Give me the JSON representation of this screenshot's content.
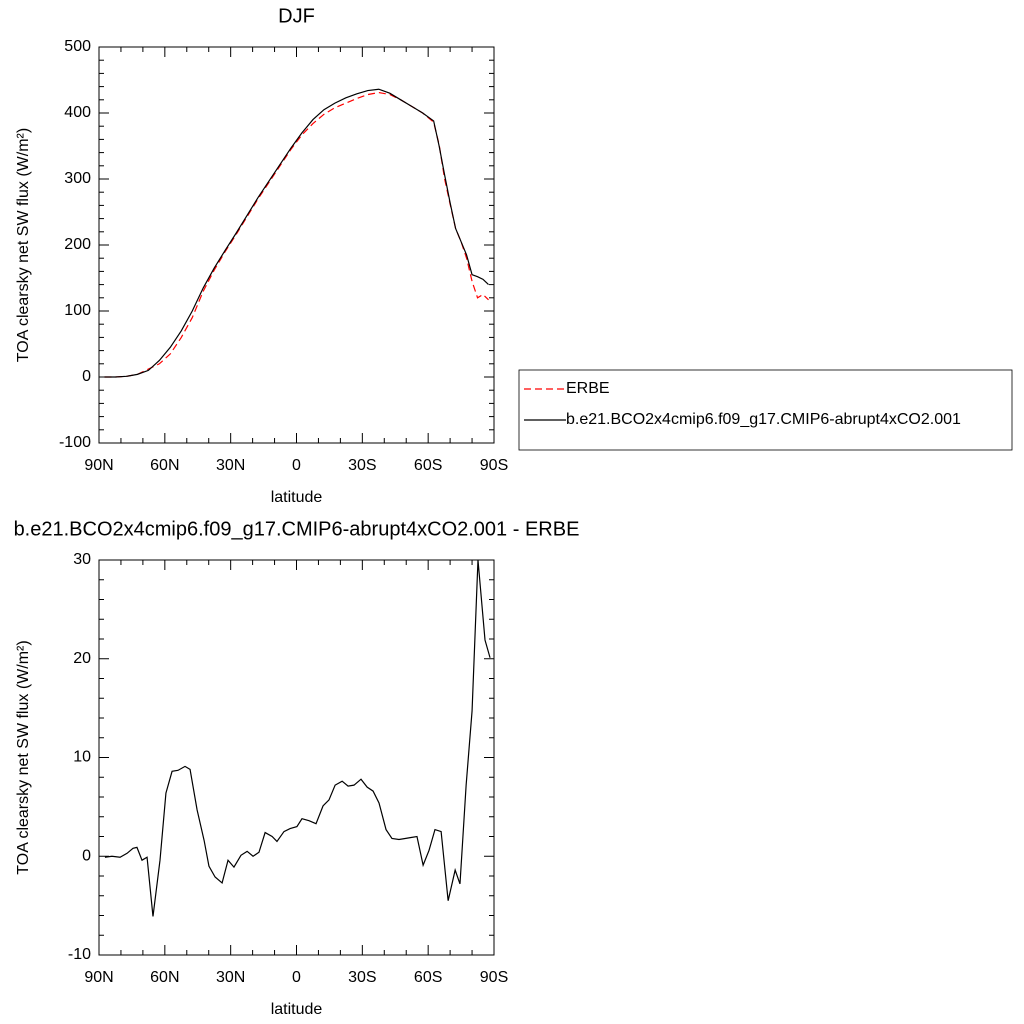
{
  "chart_data": [
    {
      "type": "line",
      "title": "DJF",
      "xlabel": "latitude",
      "ylabel": "TOA clearsky net SW flux (W/m²)",
      "x": [
        87.5,
        82.5,
        77.5,
        72.5,
        67.5,
        62.5,
        57.5,
        52.5,
        47.5,
        42.5,
        37.5,
        32.5,
        27.5,
        22.5,
        17.5,
        12.5,
        7.5,
        2.5,
        -2.5,
        -7.5,
        -12.5,
        -17.5,
        -22.5,
        -27.5,
        -32.5,
        -37.5,
        -42.5,
        -47.5,
        -52.5,
        -57.5,
        -62.5,
        -65,
        -67.5,
        -70,
        -72.5,
        -75,
        -77.5,
        -80,
        -82.5,
        -85,
        -87.5
      ],
      "series": [
        {
          "name": "ERBE",
          "color": "#ff0000",
          "line_style": "dashed",
          "values": [
            0,
            0,
            1,
            4,
            12,
            20,
            35,
            60,
            90,
            130,
            162,
            190,
            216,
            243,
            270,
            295,
            320,
            345,
            367,
            384,
            398,
            408,
            415,
            422,
            428,
            431,
            428,
            420,
            410,
            400,
            386,
            352,
            300,
            262,
            225,
            205,
            180,
            145,
            120,
            125,
            117
          ]
        },
        {
          "name": "b.e21.BCO2x4cmip6.f09_g17.CMIP6-abrupt4xCO2.001",
          "color": "#000000",
          "line_style": "solid",
          "values": [
            0,
            0,
            1,
            4,
            10,
            25,
            45,
            70,
            100,
            135,
            165,
            192,
            218,
            245,
            272,
            297,
            322,
            347,
            370,
            390,
            405,
            415,
            423,
            429,
            434,
            436,
            430,
            420,
            410,
            400,
            388,
            350,
            306,
            264,
            225,
            205,
            185,
            155,
            152,
            148,
            140
          ]
        }
      ],
      "xlim": [
        90,
        -90
      ],
      "xticks": [
        {
          "value": 90,
          "label": "90N"
        },
        {
          "value": 60,
          "label": "60N"
        },
        {
          "value": 30,
          "label": "30N"
        },
        0,
        {
          "value": -30,
          "label": "30S"
        },
        {
          "value": -60,
          "label": "60S"
        },
        {
          "value": -90,
          "label": "90S"
        }
      ],
      "ylim": [
        -100,
        500
      ],
      "yticks": [
        -100,
        0,
        100,
        200,
        300,
        400,
        500
      ],
      "legend": "right"
    },
    {
      "type": "line",
      "title": "b.e21.BCO2x4cmip6.f09_g17.CMIP6-abrupt4xCO2.001 - ERBE",
      "xlabel": "latitude",
      "ylabel": "TOA clearsky net SW flux (W/m²)",
      "x": [
        87.3,
        84.1,
        80.4,
        77.2,
        74.5,
        72.7,
        70.4,
        68.1,
        65.4,
        62.2,
        59.5,
        56.7,
        54.0,
        50.8,
        48.5,
        45.3,
        42.1,
        39.9,
        37.1,
        33.9,
        31.2,
        28.5,
        25.3,
        22.5,
        19.8,
        17.1,
        14.3,
        11.1,
        8.9,
        5.7,
        2.9,
        -0.2,
        -2.5,
        -5.7,
        -8.9,
        -12.1,
        -14.8,
        -17.6,
        -20.8,
        -23.5,
        -26.2,
        -29.4,
        -32.2,
        -34.9,
        -37.6,
        -40.8,
        -43.5,
        -46.7,
        -49.5,
        -52.2,
        -54.9,
        -57.7,
        -60.4,
        -63.1,
        -65.9,
        -69.1,
        -72.3,
        -74.5,
        -77.3,
        -80.0,
        -82.7,
        -85.9,
        -88.2
      ],
      "values": [
        -0.1,
        0,
        -0.1,
        0.3,
        0.8,
        0.9,
        -0.4,
        -0.1,
        -6.1,
        -0.4,
        6.4,
        8.6,
        8.7,
        9.1,
        8.8,
        4.7,
        1.6,
        -1.0,
        -2.1,
        -2.7,
        -0.4,
        -1.1,
        0.1,
        0.5,
        0,
        0.4,
        2.4,
        2.0,
        1.5,
        2.5,
        2.8,
        3.0,
        3.8,
        3.6,
        3.3,
        5.1,
        5.7,
        7.2,
        7.6,
        7.1,
        7.2,
        7.8,
        7.0,
        6.6,
        5.4,
        2.7,
        1.8,
        1.7,
        1.8,
        1.9,
        2.0,
        -0.9,
        0.6,
        2.7,
        2.5,
        -4.5,
        -1.4,
        -2.8,
        7.2,
        14.7,
        30,
        21.9,
        20.1
      ],
      "color": "#000000",
      "xlim": [
        90,
        -90
      ],
      "xticks": [
        {
          "value": 90,
          "label": "90N"
        },
        {
          "value": 60,
          "label": "60N"
        },
        {
          "value": 30,
          "label": "30N"
        },
        0,
        {
          "value": -30,
          "label": "30S"
        },
        {
          "value": -60,
          "label": "60S"
        },
        {
          "value": -90,
          "label": "90S"
        }
      ],
      "ylim": [
        -10,
        30
      ],
      "yticks": [
        -10,
        0,
        10,
        20,
        30
      ]
    }
  ]
}
